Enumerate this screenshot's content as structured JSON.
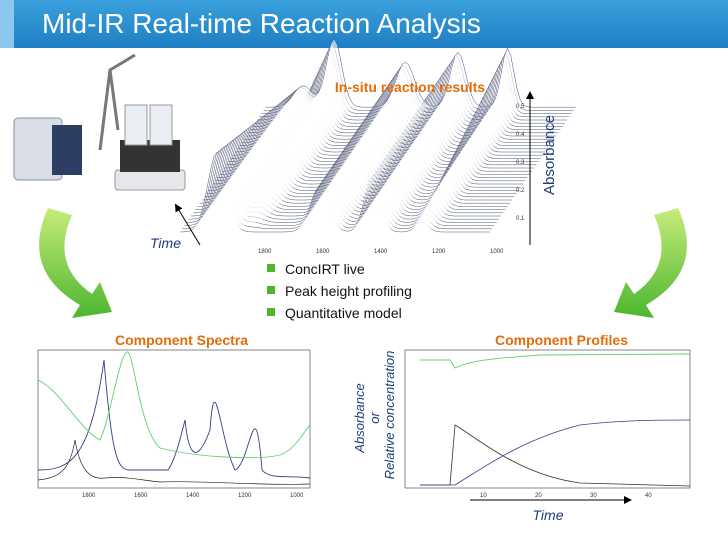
{
  "header": {
    "title": "Mid-IR Real-time Reaction Analysis"
  },
  "reaction_plot": {
    "title": "In-situ reaction results",
    "y_label": "Absorbance",
    "x_label": "Time",
    "y_ticks": [
      "0.5",
      "0.4",
      "0.3",
      "0.2",
      "0.1"
    ],
    "x_ticks": [
      "1800",
      "1600",
      "1400",
      "1200",
      "1000"
    ]
  },
  "bullets": [
    "ConcIRT live",
    "Peak height profiling",
    "Quantitative model"
  ],
  "component_spectra": {
    "title": "Component Spectra",
    "x_ticks": [
      "1800",
      "1600",
      "1400",
      "1200",
      "1000"
    ]
  },
  "component_profiles": {
    "title": "Component Profiles",
    "y_label": [
      "Absorbance",
      "or",
      "Relative concentration"
    ],
    "x_label": "Time",
    "x_ticks": [
      "10",
      "20",
      "30",
      "40"
    ]
  }
}
